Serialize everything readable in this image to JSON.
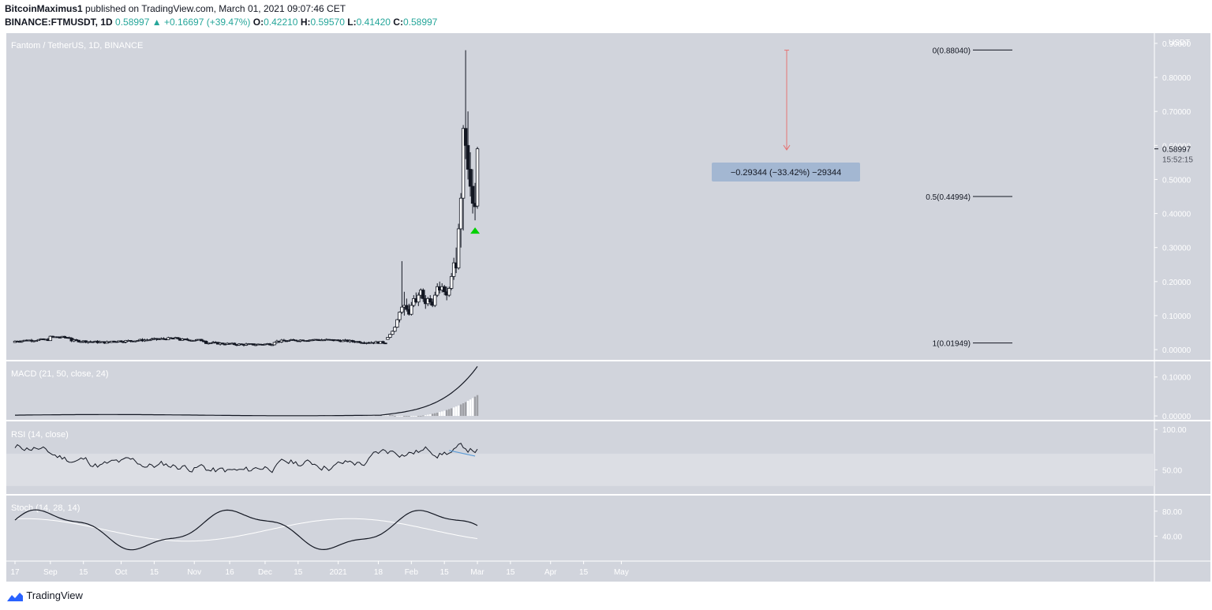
{
  "header": {
    "author": "BitcoinMaximus1",
    "published_text": "published on TradingView.com, March 01, 2021 09:07:46 CET",
    "symbol": "BINANCE:FTMUSDT, 1D",
    "last": "0.58997",
    "change": "+0.16697 (+39.47%)",
    "open_label": "O:",
    "open": "0.42210",
    "high_label": "H:",
    "high": "0.59570",
    "low_label": "L:",
    "low": "0.41420",
    "close_label": "C:",
    "close": "0.58997"
  },
  "chart_title": "Fantom / TetherUS, 1D, BINANCE",
  "footer": {
    "brand": "TradingView"
  },
  "colors": {
    "panel_bg": "#d1d4dc",
    "rsi_band": "#dcdee4",
    "measure_box": "#a3b7d2",
    "measure_arrow": "#e57373",
    "green_marker": "#00d000",
    "divergence_line": "#5b9bd5",
    "candle_up": "#ffffff",
    "candle_down": "#131722"
  },
  "chart_data": [
    {
      "type": "candlestick",
      "title": "Fantom / TetherUS, 1D, BINANCE",
      "y_unit": "USDT",
      "ylim": [
        -0.03,
        0.93
      ],
      "yticks": [
        "0.90000",
        "0.80000",
        "0.70000",
        "0.60000",
        "0.50000",
        "0.40000",
        "0.30000",
        "0.20000",
        "0.10000",
        "0.00000"
      ],
      "ytick_values": [
        0.9,
        0.8,
        0.7,
        0.6,
        0.5,
        0.4,
        0.3,
        0.2,
        0.1,
        0.0
      ],
      "x_ticks": [
        "17",
        "Sep",
        "15",
        "Oct",
        "15",
        "Nov",
        "16",
        "Dec",
        "15",
        "2021",
        "18",
        "Feb",
        "15",
        "Mar",
        "15",
        "Apr",
        "15",
        "May"
      ],
      "x_tick_days": [
        0,
        15,
        29,
        45,
        59,
        76,
        91,
        106,
        120,
        137,
        154,
        168,
        182,
        196,
        210,
        227,
        241,
        257
      ],
      "date_range": [
        "2020-08-17",
        "2021-03-01"
      ],
      "price_label": "0.58997",
      "countdown": "15:52:15",
      "recent_candles": [
        {
          "d": "2021-01-22",
          "o": 0.03,
          "h": 0.037,
          "l": 0.029,
          "c": 0.036
        },
        {
          "d": "2021-01-23",
          "o": 0.036,
          "h": 0.046,
          "l": 0.034,
          "c": 0.045
        },
        {
          "d": "2021-01-24",
          "o": 0.045,
          "h": 0.056,
          "l": 0.043,
          "c": 0.054
        },
        {
          "d": "2021-01-25",
          "o": 0.054,
          "h": 0.068,
          "l": 0.052,
          "c": 0.066
        },
        {
          "d": "2021-01-26",
          "o": 0.066,
          "h": 0.09,
          "l": 0.064,
          "c": 0.088
        },
        {
          "d": "2021-01-27",
          "o": 0.088,
          "h": 0.112,
          "l": 0.08,
          "c": 0.11
        },
        {
          "d": "2021-01-28",
          "o": 0.11,
          "h": 0.26,
          "l": 0.105,
          "c": 0.125
        },
        {
          "d": "2021-01-29",
          "o": 0.125,
          "h": 0.17,
          "l": 0.1,
          "c": 0.13
        },
        {
          "d": "2021-01-30",
          "o": 0.13,
          "h": 0.15,
          "l": 0.112,
          "c": 0.118
        },
        {
          "d": "2021-01-31",
          "o": 0.118,
          "h": 0.135,
          "l": 0.1,
          "c": 0.104
        },
        {
          "d": "2021-02-01",
          "o": 0.104,
          "h": 0.14,
          "l": 0.1,
          "c": 0.13
        },
        {
          "d": "2021-02-02",
          "o": 0.13,
          "h": 0.16,
          "l": 0.125,
          "c": 0.15
        },
        {
          "d": "2021-02-03",
          "o": 0.15,
          "h": 0.168,
          "l": 0.136,
          "c": 0.14
        },
        {
          "d": "2021-02-04",
          "o": 0.14,
          "h": 0.168,
          "l": 0.128,
          "c": 0.16
        },
        {
          "d": "2021-02-05",
          "o": 0.16,
          "h": 0.18,
          "l": 0.15,
          "c": 0.175
        },
        {
          "d": "2021-02-06",
          "o": 0.175,
          "h": 0.18,
          "l": 0.14,
          "c": 0.15
        },
        {
          "d": "2021-02-07",
          "o": 0.15,
          "h": 0.16,
          "l": 0.12,
          "c": 0.135
        },
        {
          "d": "2021-02-08",
          "o": 0.135,
          "h": 0.155,
          "l": 0.128,
          "c": 0.15
        },
        {
          "d": "2021-02-09",
          "o": 0.15,
          "h": 0.16,
          "l": 0.13,
          "c": 0.14
        },
        {
          "d": "2021-02-10",
          "o": 0.14,
          "h": 0.15,
          "l": 0.125,
          "c": 0.13
        },
        {
          "d": "2021-02-11",
          "o": 0.13,
          "h": 0.17,
          "l": 0.125,
          "c": 0.16
        },
        {
          "d": "2021-02-12",
          "o": 0.16,
          "h": 0.195,
          "l": 0.155,
          "c": 0.185
        },
        {
          "d": "2021-02-13",
          "o": 0.185,
          "h": 0.2,
          "l": 0.165,
          "c": 0.175
        },
        {
          "d": "2021-02-14",
          "o": 0.175,
          "h": 0.195,
          "l": 0.168,
          "c": 0.185
        },
        {
          "d": "2021-02-15",
          "o": 0.185,
          "h": 0.19,
          "l": 0.16,
          "c": 0.17
        },
        {
          "d": "2021-02-16",
          "o": 0.17,
          "h": 0.185,
          "l": 0.145,
          "c": 0.16
        },
        {
          "d": "2021-02-17",
          "o": 0.16,
          "h": 0.185,
          "l": 0.155,
          "c": 0.18
        },
        {
          "d": "2021-02-18",
          "o": 0.18,
          "h": 0.225,
          "l": 0.175,
          "c": 0.215
        },
        {
          "d": "2021-02-19",
          "o": 0.215,
          "h": 0.27,
          "l": 0.205,
          "c": 0.255
        },
        {
          "d": "2021-02-20",
          "o": 0.255,
          "h": 0.3,
          "l": 0.225,
          "c": 0.24
        },
        {
          "d": "2021-02-21",
          "o": 0.24,
          "h": 0.37,
          "l": 0.235,
          "c": 0.355
        },
        {
          "d": "2021-02-22",
          "o": 0.355,
          "h": 0.46,
          "l": 0.3,
          "c": 0.445
        },
        {
          "d": "2021-02-23",
          "o": 0.445,
          "h": 0.66,
          "l": 0.35,
          "c": 0.65
        },
        {
          "d": "2021-02-24",
          "o": 0.65,
          "h": 0.88,
          "l": 0.56,
          "c": 0.6
        },
        {
          "d": "2021-02-25",
          "o": 0.6,
          "h": 0.7,
          "l": 0.5,
          "c": 0.53
        },
        {
          "d": "2021-02-26",
          "o": 0.53,
          "h": 0.58,
          "l": 0.45,
          "c": 0.48
        },
        {
          "d": "2021-02-27",
          "o": 0.48,
          "h": 0.53,
          "l": 0.4,
          "c": 0.43
        },
        {
          "d": "2021-02-28",
          "o": 0.43,
          "h": 0.49,
          "l": 0.38,
          "c": 0.42
        },
        {
          "d": "2021-03-01",
          "o": 0.422,
          "h": 0.596,
          "l": 0.414,
          "c": 0.59
        }
      ],
      "fib_levels": [
        {
          "label": "0(0.88040)",
          "value": 0.8804
        },
        {
          "label": "0.5(0.44994)",
          "value": 0.44994
        },
        {
          "label": "1(0.01949)",
          "value": 0.01949
        }
      ],
      "measure": {
        "label": "−0.29344 (−33.42%) −29344",
        "from": 0.88,
        "to": 0.587
      }
    },
    {
      "type": "line",
      "title": "MACD (21, 50, close, 24)",
      "ylim": [
        -0.01,
        0.14
      ],
      "yticks": [
        "0.10000",
        "0.00000"
      ],
      "ytick_values": [
        0.1,
        0.0
      ]
    },
    {
      "type": "line",
      "title": "RSI (14, close)",
      "ylim": [
        20,
        110
      ],
      "band": [
        30,
        70
      ],
      "yticks": [
        "100.00",
        "50.00"
      ],
      "ytick_values": [
        100,
        50
      ]
    },
    {
      "type": "line",
      "title": "Stoch (14, 28, 14)",
      "ylim": [
        0,
        105
      ],
      "yticks": [
        "80.00",
        "40.00"
      ],
      "ytick_values": [
        80,
        40
      ]
    }
  ]
}
